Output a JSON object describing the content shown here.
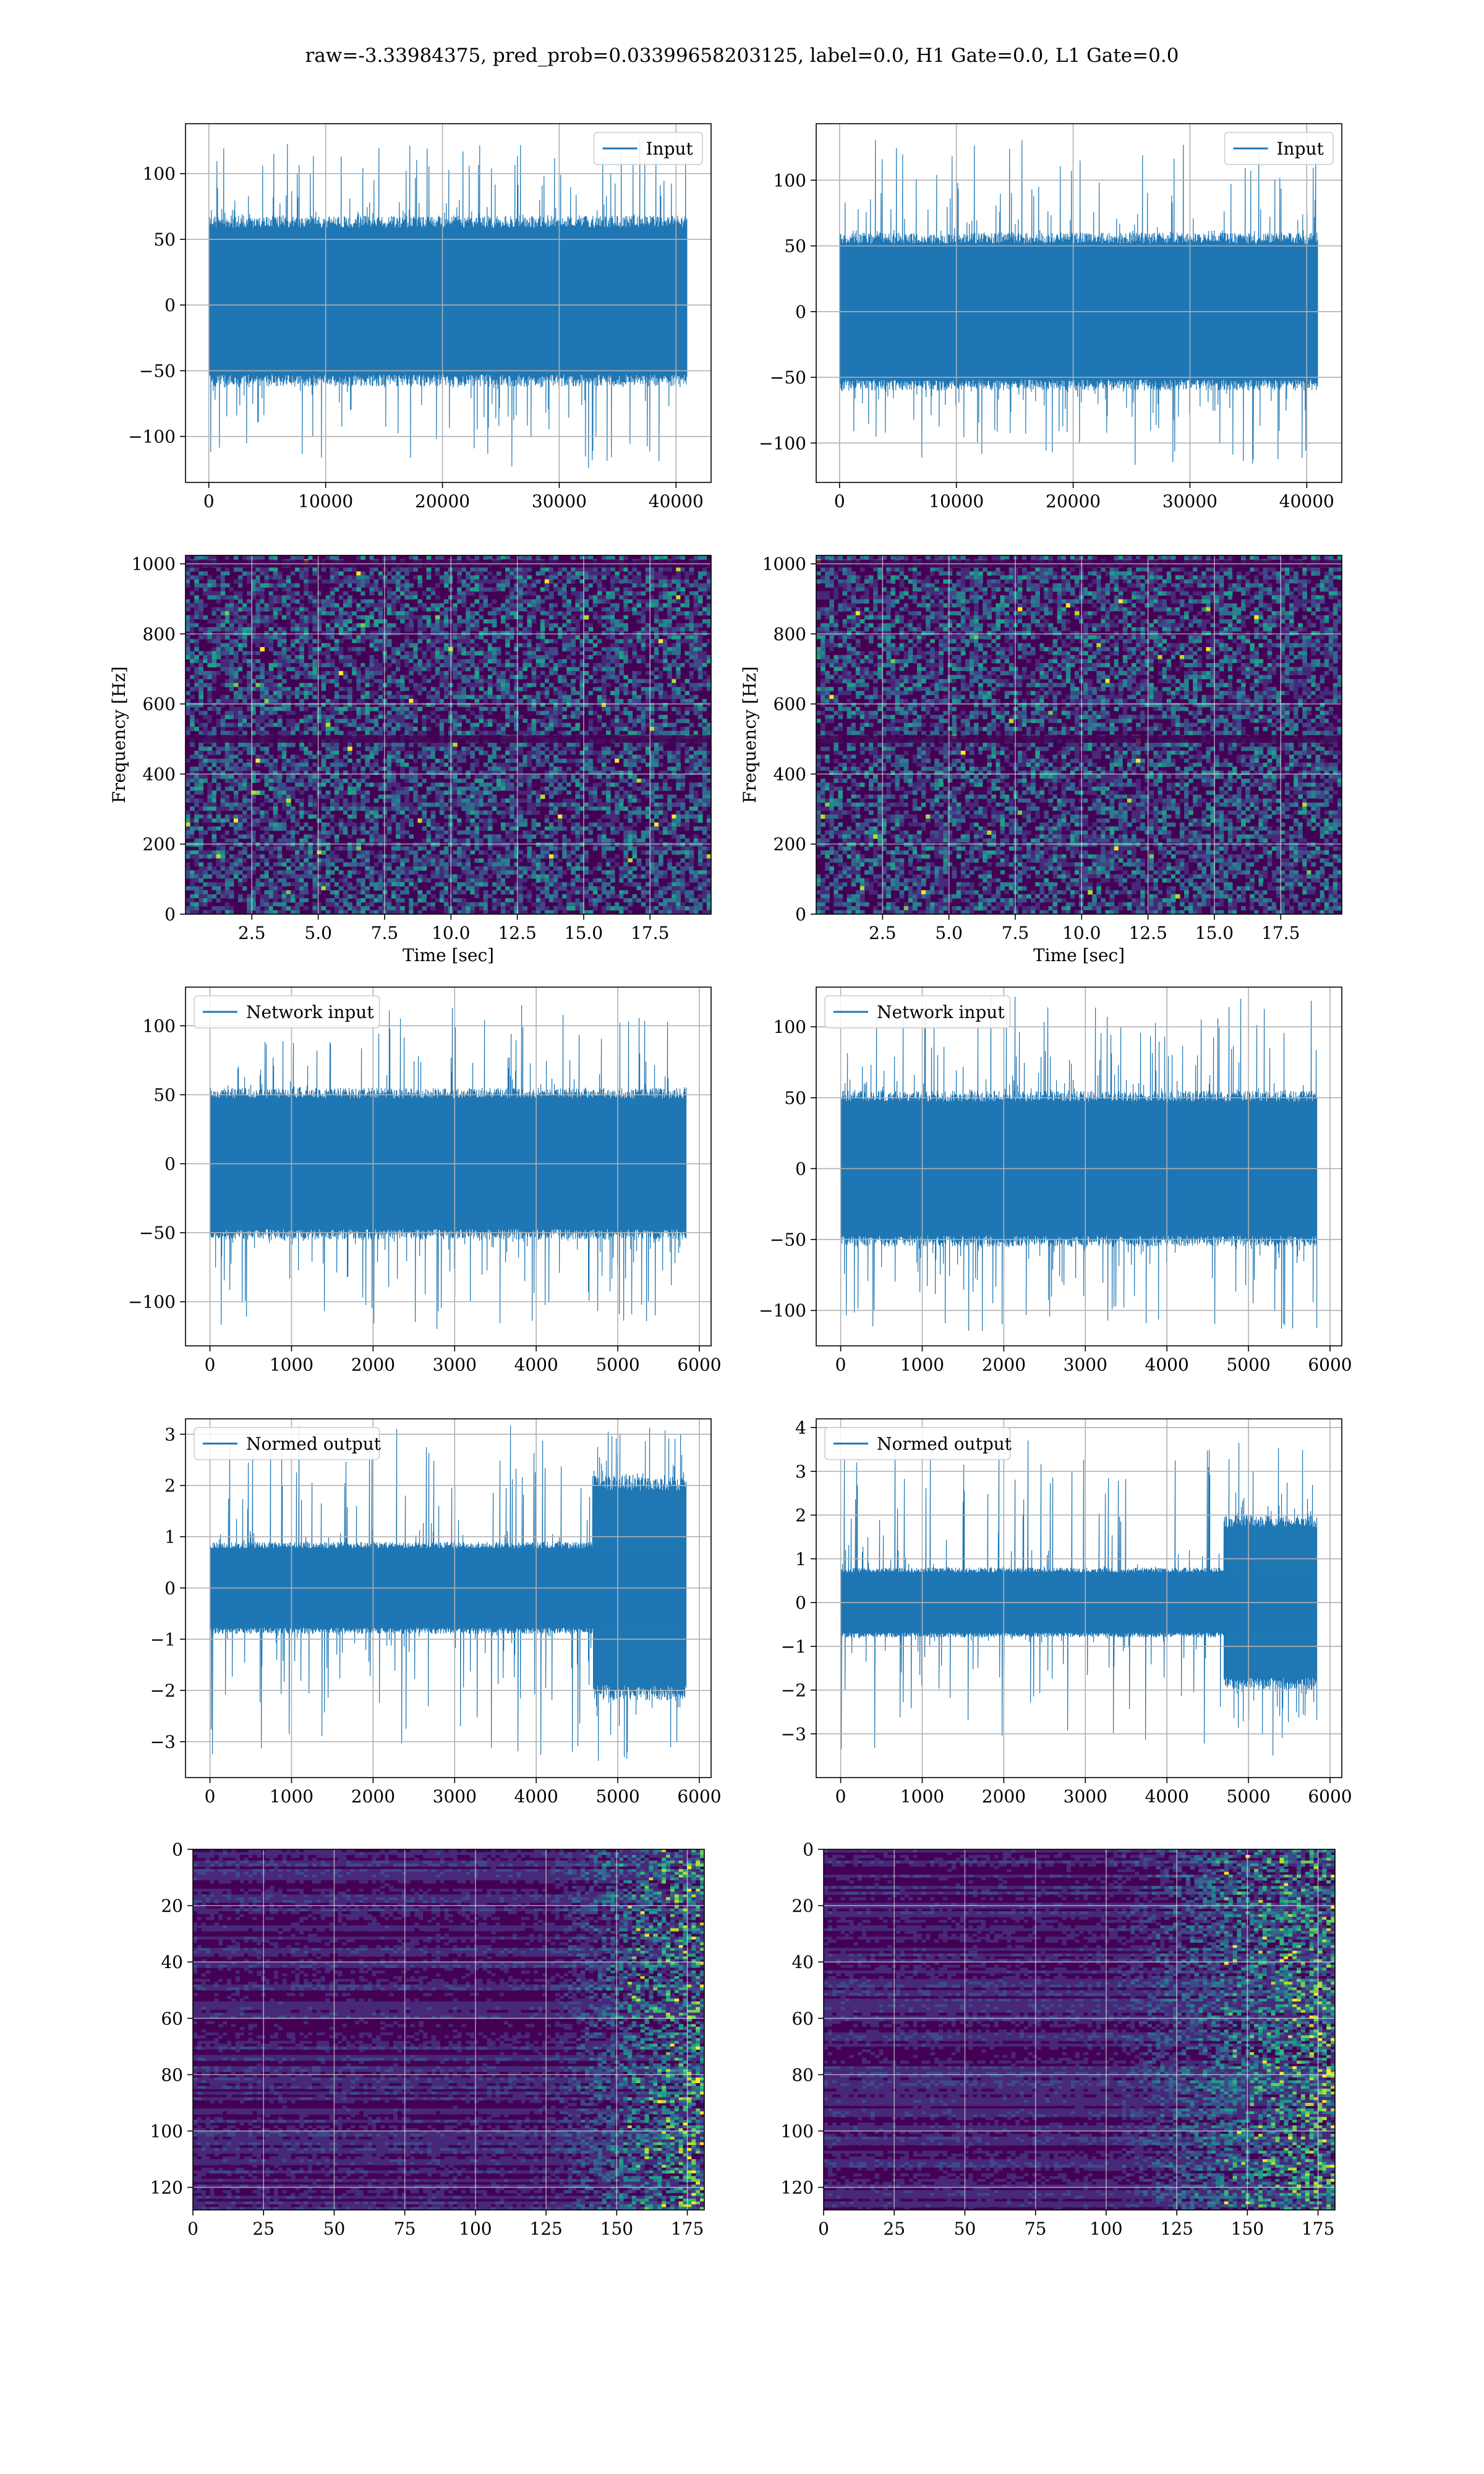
{
  "figure": {
    "suptitle": "raw=-3.33984375, pred_prob=0.03399658203125, label=0.0, H1 Gate=0.0, L1 Gate=0.0"
  },
  "colors": {
    "line": "#1f77b4",
    "grid": "#b0b0b0",
    "viridis": [
      "#440154",
      "#482878",
      "#3e4989",
      "#31688e",
      "#26828e",
      "#1f9e89",
      "#35b779",
      "#6ece58",
      "#b5de2b",
      "#fde725"
    ]
  },
  "chart_data": [
    {
      "id": "input-h1",
      "type": "line",
      "legend": "Input",
      "legend_pos": "top-right",
      "xlabel": "",
      "ylabel": "",
      "xlim": [
        -2000,
        43000
      ],
      "ylim": [
        -135,
        138
      ],
      "xticks": [
        0,
        10000,
        20000,
        30000,
        40000
      ],
      "xtick_labels": [
        "0",
        "10000",
        "20000",
        "30000",
        "40000"
      ],
      "yticks": [
        -100,
        -50,
        0,
        50,
        100
      ],
      "ytick_labels": [
        "−100",
        "−50",
        "0",
        "50",
        "100"
      ],
      "grid": true,
      "series": [
        {
          "x_start": 0,
          "x_end": 40960,
          "band": [
            -62,
            68
          ],
          "extremes": [
            -128,
            128
          ]
        }
      ]
    },
    {
      "id": "input-l1",
      "type": "line",
      "legend": "Input",
      "legend_pos": "top-right",
      "xlabel": "",
      "ylabel": "",
      "xlim": [
        -2000,
        43000
      ],
      "ylim": [
        -130,
        143
      ],
      "xticks": [
        0,
        10000,
        20000,
        30000,
        40000
      ],
      "xtick_labels": [
        "0",
        "10000",
        "20000",
        "30000",
        "40000"
      ],
      "yticks": [
        -100,
        -50,
        0,
        50,
        100
      ],
      "ytick_labels": [
        "−100",
        "−50",
        "0",
        "50",
        "100"
      ],
      "grid": true,
      "series": [
        {
          "x_start": 0,
          "x_end": 40960,
          "band": [
            -60,
            60
          ],
          "extremes": [
            -118,
            133
          ]
        }
      ]
    },
    {
      "id": "spectrogram-h1",
      "type": "heatmap",
      "xlabel": "Time [sec]",
      "ylabel": "Frequency [Hz]",
      "xlim": [
        0,
        19.8
      ],
      "ylim": [
        0,
        1024
      ],
      "xticks": [
        2.5,
        5.0,
        7.5,
        10.0,
        12.5,
        15.0,
        17.5
      ],
      "xtick_labels": [
        "2.5",
        "5.0",
        "7.5",
        "10.0",
        "12.5",
        "15.0",
        "17.5"
      ],
      "yticks": [
        0,
        200,
        400,
        600,
        800,
        1000
      ],
      "ytick_labels": [
        "0",
        "200",
        "400",
        "600",
        "800",
        "1000"
      ],
      "grid": true,
      "colormap": "viridis",
      "dark_bands_hz": [
        1000,
        500
      ]
    },
    {
      "id": "spectrogram-l1",
      "type": "heatmap",
      "xlabel": "Time [sec]",
      "ylabel": "Frequency [Hz]",
      "xlim": [
        0,
        19.8
      ],
      "ylim": [
        0,
        1024
      ],
      "xticks": [
        2.5,
        5.0,
        7.5,
        10.0,
        12.5,
        15.0,
        17.5
      ],
      "xtick_labels": [
        "2.5",
        "5.0",
        "7.5",
        "10.0",
        "12.5",
        "15.0",
        "17.5"
      ],
      "yticks": [
        0,
        200,
        400,
        600,
        800,
        1000
      ],
      "ytick_labels": [
        "0",
        "200",
        "400",
        "600",
        "800",
        "1000"
      ],
      "grid": true,
      "colormap": "viridis",
      "dark_bands_hz": [
        1000,
        500
      ]
    },
    {
      "id": "network-input-h1",
      "type": "line",
      "legend": "Network input",
      "legend_pos": "top-left",
      "xlabel": "",
      "ylabel": "",
      "xlim": [
        -300,
        6144
      ],
      "ylim": [
        -132,
        128
      ],
      "xticks": [
        0,
        1000,
        2000,
        3000,
        4000,
        5000,
        6000
      ],
      "xtick_labels": [
        "0",
        "1000",
        "2000",
        "3000",
        "4000",
        "5000",
        "6000"
      ],
      "yticks": [
        -100,
        -50,
        0,
        50,
        100
      ],
      "ytick_labels": [
        "−100",
        "−50",
        "0",
        "50",
        "100"
      ],
      "grid": true,
      "series": [
        {
          "x_start": 0,
          "x_end": 5840,
          "band": [
            -55,
            55
          ],
          "extremes": [
            -120,
            118
          ]
        }
      ]
    },
    {
      "id": "network-input-l1",
      "type": "line",
      "legend": "Network input",
      "legend_pos": "top-left",
      "xlabel": "",
      "ylabel": "",
      "xlim": [
        -300,
        6144
      ],
      "ylim": [
        -125,
        128
      ],
      "xticks": [
        0,
        1000,
        2000,
        3000,
        4000,
        5000,
        6000
      ],
      "xtick_labels": [
        "0",
        "1000",
        "2000",
        "3000",
        "4000",
        "5000",
        "6000"
      ],
      "yticks": [
        -100,
        -50,
        0,
        50,
        100
      ],
      "ytick_labels": [
        "−100",
        "−50",
        "0",
        "50",
        "100"
      ],
      "grid": true,
      "series": [
        {
          "x_start": 0,
          "x_end": 5840,
          "band": [
            -55,
            55
          ],
          "extremes": [
            -115,
            122
          ]
        }
      ]
    },
    {
      "id": "normed-output-h1",
      "type": "line",
      "legend": "Normed output",
      "legend_pos": "top-left",
      "xlabel": "",
      "ylabel": "",
      "xlim": [
        -300,
        6144
      ],
      "ylim": [
        -3.7,
        3.3
      ],
      "xticks": [
        0,
        1000,
        2000,
        3000,
        4000,
        5000,
        6000
      ],
      "xtick_labels": [
        "0",
        "1000",
        "2000",
        "3000",
        "4000",
        "5000",
        "6000"
      ],
      "yticks": [
        -3,
        -2,
        -1,
        0,
        1,
        2,
        3
      ],
      "ytick_labels": [
        "−3",
        "−2",
        "−1",
        "0",
        "1",
        "2",
        "3"
      ],
      "grid": true,
      "series": [
        {
          "x_start": 0,
          "x_end": 5840,
          "band": [
            -0.9,
            0.9
          ],
          "extremes": [
            -3.4,
            3.2
          ],
          "burst_start": 4700,
          "burst_band": [
            -2.2,
            2.2
          ]
        }
      ]
    },
    {
      "id": "normed-output-l1",
      "type": "line",
      "legend": "Normed output",
      "legend_pos": "top-left",
      "xlabel": "",
      "ylabel": "",
      "xlim": [
        -300,
        6144
      ],
      "ylim": [
        -4.0,
        4.2
      ],
      "xticks": [
        0,
        1000,
        2000,
        3000,
        4000,
        5000,
        6000
      ],
      "xtick_labels": [
        "0",
        "1000",
        "2000",
        "3000",
        "4000",
        "5000",
        "6000"
      ],
      "yticks": [
        -3,
        -2,
        -1,
        0,
        1,
        2,
        3,
        4
      ],
      "ytick_labels": [
        "−3",
        "−2",
        "−1",
        "0",
        "1",
        "2",
        "3",
        "4"
      ],
      "grid": true,
      "series": [
        {
          "x_start": 0,
          "x_end": 5840,
          "band": [
            -0.8,
            0.8
          ],
          "extremes": [
            -3.5,
            3.9
          ],
          "burst_start": 4700,
          "burst_band": [
            -2.0,
            2.0
          ]
        }
      ]
    },
    {
      "id": "feature-map-h1",
      "type": "heatmap",
      "xlabel": "",
      "ylabel": "",
      "xlim": [
        0,
        181
      ],
      "ylim": [
        128,
        0
      ],
      "xticks": [
        0,
        25,
        50,
        75,
        100,
        125,
        150,
        175
      ],
      "xtick_labels": [
        "0",
        "25",
        "50",
        "75",
        "100",
        "125",
        "150",
        "175"
      ],
      "yticks": [
        0,
        20,
        40,
        60,
        80,
        100,
        120
      ],
      "ytick_labels": [
        "0",
        "20",
        "40",
        "60",
        "80",
        "100",
        "120"
      ],
      "grid": true,
      "colormap": "viridis",
      "active_from": 125
    },
    {
      "id": "feature-map-l1",
      "type": "heatmap",
      "xlabel": "",
      "ylabel": "",
      "xlim": [
        0,
        181
      ],
      "ylim": [
        128,
        0
      ],
      "xticks": [
        0,
        25,
        50,
        75,
        100,
        125,
        150,
        175
      ],
      "xtick_labels": [
        "0",
        "25",
        "50",
        "75",
        "100",
        "125",
        "150",
        "175"
      ],
      "yticks": [
        0,
        20,
        40,
        60,
        80,
        100,
        120
      ],
      "ytick_labels": [
        "0",
        "20",
        "40",
        "60",
        "80",
        "100",
        "120"
      ],
      "grid": true,
      "colormap": "viridis",
      "active_from": 100
    }
  ]
}
